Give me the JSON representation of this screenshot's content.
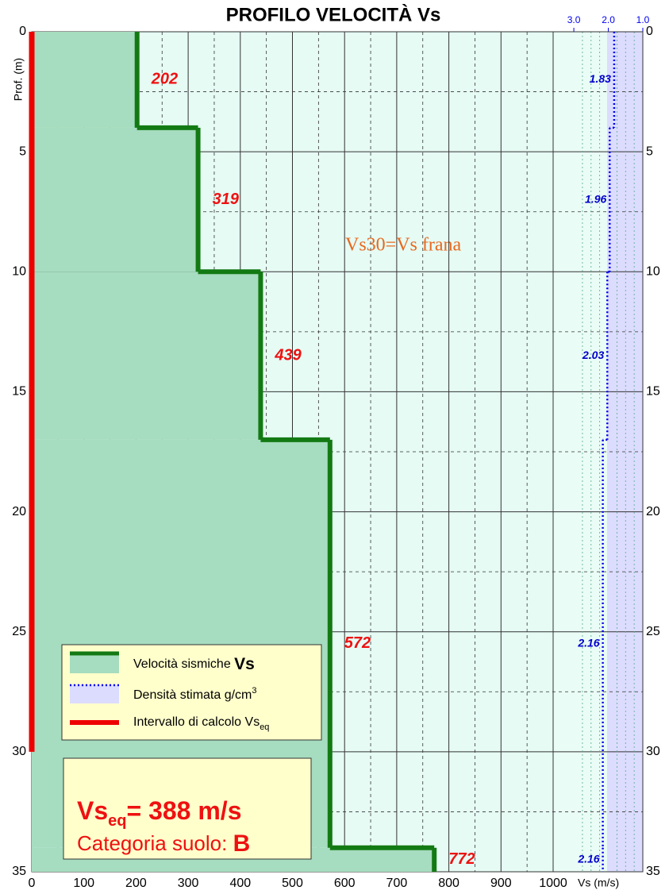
{
  "chart_data": {
    "type": "step",
    "title": "PROFILO VELOCITÀ Vs",
    "y_label": "Prof. (m)",
    "x_label": "Vs (m/s)",
    "xlim": [
      0,
      1000
    ],
    "xticks": [
      0,
      100,
      200,
      300,
      400,
      500,
      600,
      700,
      800,
      900,
      1000
    ],
    "ylim": [
      0,
      35
    ],
    "yticks": [
      0,
      5,
      10,
      15,
      20,
      25,
      30,
      35
    ],
    "x2lim": [
      3.6,
      1.0
    ],
    "x2ticks": [
      {
        "value": 3,
        "label": "3.0"
      },
      {
        "value": 2,
        "label": "2.0"
      },
      {
        "value": 1,
        "label": "1.0"
      }
    ],
    "grid": true,
    "depths": [
      0,
      4,
      10,
      17,
      34,
      35
    ],
    "series": [
      {
        "name": "Velocità sismiche ",
        "name_em": "Vs",
        "color": "#137a13",
        "fill": "#a6dcbf",
        "values": [
          202,
          319,
          439,
          572,
          772
        ]
      },
      {
        "name": "Densità stimata g/cm",
        "name_sup": "3",
        "color": "#0000ee",
        "axis": "x2",
        "values": [
          1.83,
          1.96,
          2.03,
          2.16,
          2.16
        ]
      }
    ],
    "interval": {
      "name": "Intervallo di calcolo Vs",
      "name_sub": "eq",
      "color": "#ee0000",
      "range": [
        0,
        30
      ]
    },
    "annotation": "Vs30=Vs frana",
    "result": {
      "label": "Vs",
      "label_sub": "eq",
      "value_text": "= 388 m/s",
      "category_label": "Categoria suolo: ",
      "category": "B"
    }
  }
}
